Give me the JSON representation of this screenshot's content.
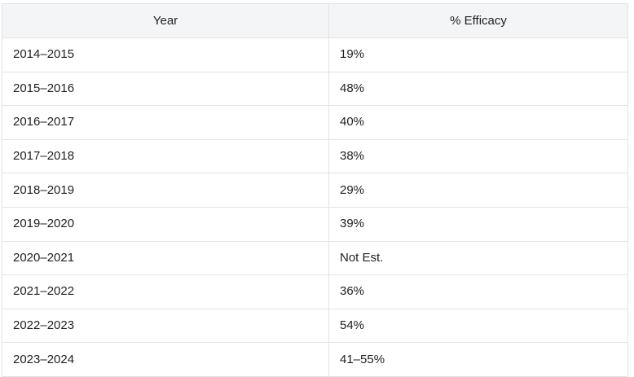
{
  "table": {
    "headers": {
      "year": "Year",
      "efficacy": "% Efficacy"
    },
    "rows": [
      {
        "year": "2014–2015",
        "efficacy": "19%"
      },
      {
        "year": "2015–2016",
        "efficacy": "48%"
      },
      {
        "year": "2016–2017",
        "efficacy": "40%"
      },
      {
        "year": "2017–2018",
        "efficacy": "38%"
      },
      {
        "year": "2018–2019",
        "efficacy": "29%"
      },
      {
        "year": "2019–2020",
        "efficacy": "39%"
      },
      {
        "year": "2020–2021",
        "efficacy": "Not Est."
      },
      {
        "year": "2021–2022",
        "efficacy": "36%"
      },
      {
        "year": "2022–2023",
        "efficacy": "54%"
      },
      {
        "year": "2023–2024",
        "efficacy": "41–55%"
      }
    ]
  }
}
